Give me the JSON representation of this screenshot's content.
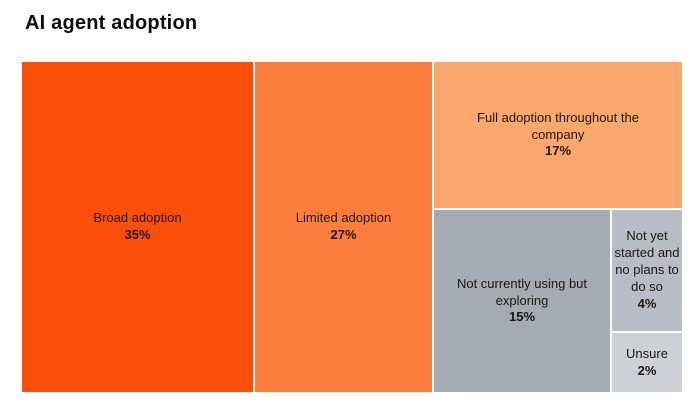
{
  "title": "AI agent adoption",
  "colors": {
    "background": "#ffffff",
    "title_text": "#0d0d0d",
    "segment_text": "#211712"
  },
  "chart_data": {
    "type": "treemap",
    "title": "AI agent adoption",
    "unit": "%",
    "total": 100,
    "legend": "none",
    "segments": [
      {
        "label": "Broad adoption",
        "value": 35,
        "value_label": "35%",
        "color": "#FA4F0A"
      },
      {
        "label": "Limited adoption",
        "value": 27,
        "value_label": "27%",
        "color": "#FB7E3C"
      },
      {
        "label": "Full adoption throughout the company",
        "value": 17,
        "value_label": "17%",
        "color": "#FCA76C"
      },
      {
        "label": "Not currently using but exploring",
        "value": 15,
        "value_label": "15%",
        "color": "#A5ABB5"
      },
      {
        "label": "Not yet started and no plans to do so",
        "value": 4,
        "value_label": "4%",
        "color": "#B7BCC6"
      },
      {
        "label": "Unsure",
        "value": 2,
        "value_label": "2%",
        "color": "#CDD1D6"
      }
    ]
  }
}
